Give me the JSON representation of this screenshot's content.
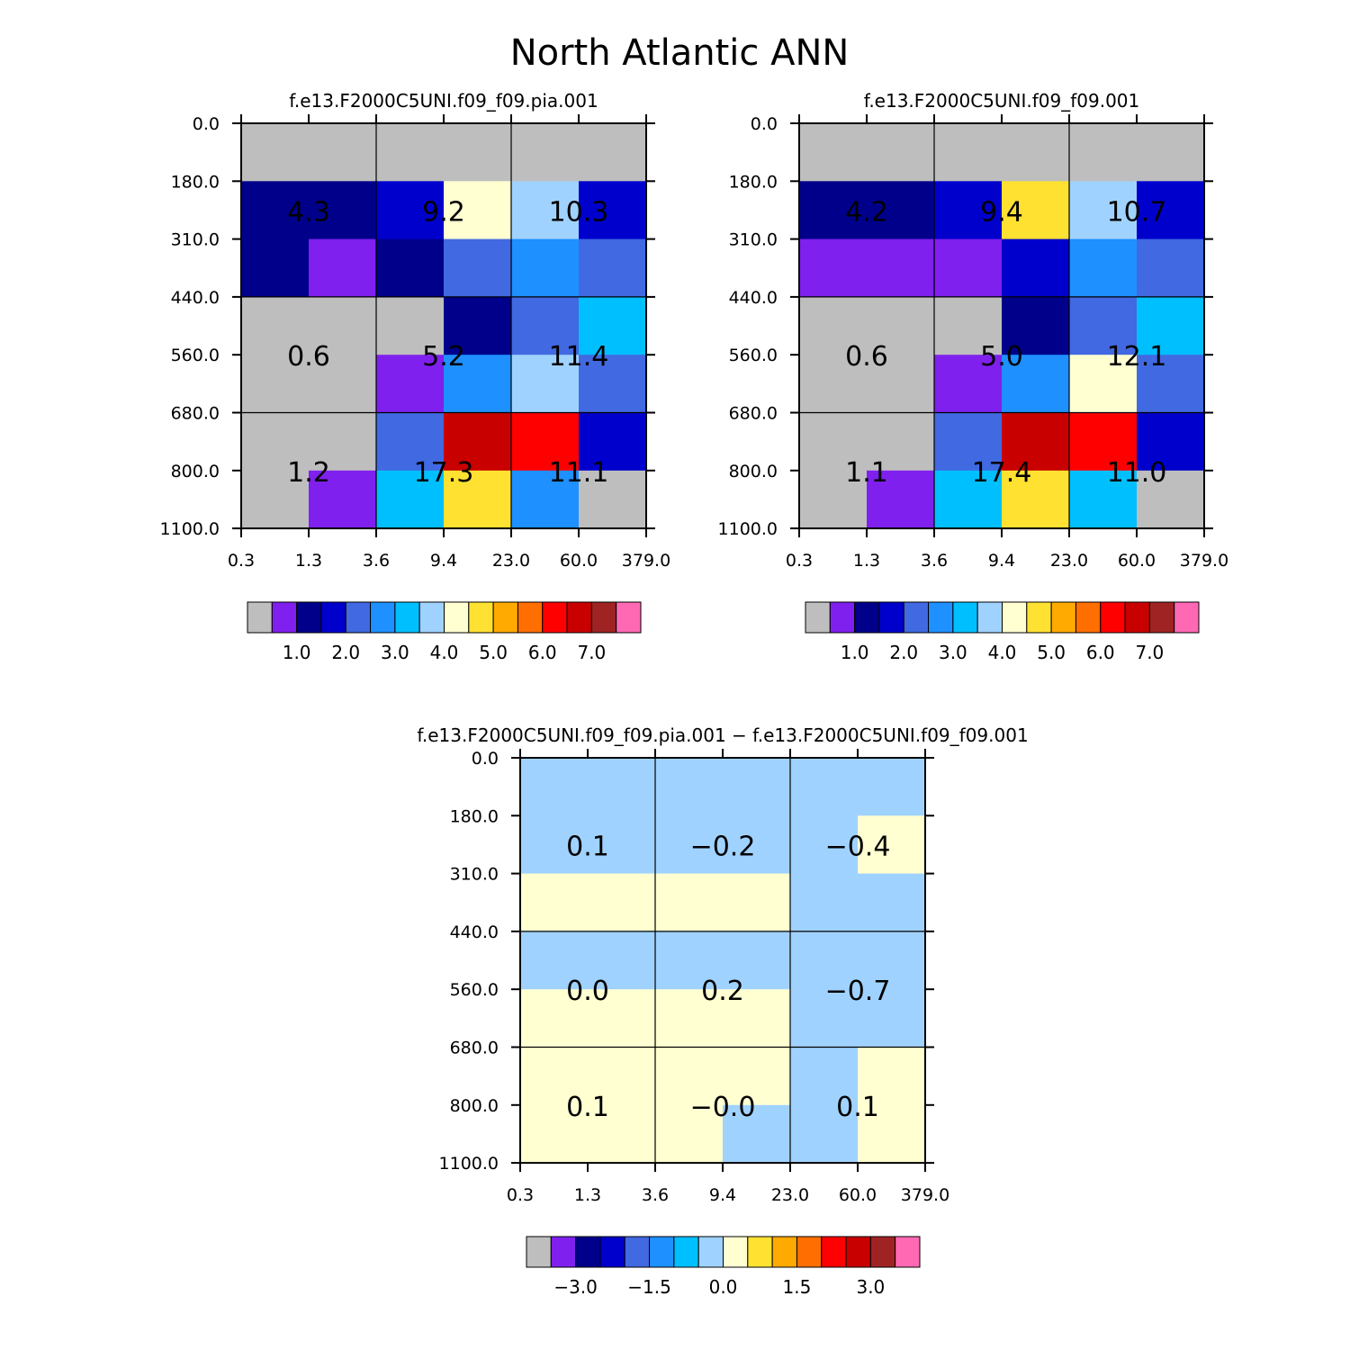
{
  "title": "North Atlantic ANN",
  "chart_data": [
    {
      "type": "heatmap",
      "title": "f.e13.F2000C5UNI.f09_f09.pia.001",
      "x_tick_labels": [
        "0.3",
        "1.3",
        "3.6",
        "9.4",
        "23.0",
        "60.0",
        "379.0"
      ],
      "y_tick_labels": [
        "0.0",
        "180.0",
        "310.0",
        "440.0",
        "560.0",
        "680.0",
        "800.0",
        "1100.0"
      ],
      "cell_colors": [
        [
          "#BEBEBE",
          "#BEBEBE",
          "#BEBEBE",
          "#BEBEBE",
          "#BEBEBE",
          "#BEBEBE"
        ],
        [
          "#00008B",
          "#00008B",
          "#0000CD",
          "#FFFFD2",
          "#A0D2FF",
          "#0000CD"
        ],
        [
          "#00008B",
          "#7F20EE",
          "#00008B",
          "#4169E1",
          "#1E90FF",
          "#4169E1"
        ],
        [
          "#BEBEBE",
          "#BEBEBE",
          "#BEBEBE",
          "#00008B",
          "#4169E1",
          "#00BFFF"
        ],
        [
          "#BEBEBE",
          "#BEBEBE",
          "#7F20EE",
          "#1E90FF",
          "#A0D2FF",
          "#4169E1"
        ],
        [
          "#BEBEBE",
          "#BEBEBE",
          "#4169E1",
          "#C80000",
          "#FF0000",
          "#0000CD"
        ],
        [
          "#BEBEBE",
          "#7F20EE",
          "#00BFFF",
          "#FFE132",
          "#1E90FF",
          "#BEBEBE"
        ]
      ],
      "block_values": [
        [
          "4.3",
          "9.2",
          "10.3"
        ],
        [
          "0.6",
          "5.2",
          "11.4"
        ],
        [
          "1.2",
          "17.3",
          "11.1"
        ]
      ],
      "colorbar": {
        "colors": [
          "#BEBEBE",
          "#7F20EE",
          "#00008B",
          "#0000CD",
          "#4169E1",
          "#1E90FF",
          "#00BFFF",
          "#A0D2FF",
          "#FFFFD2",
          "#FFE132",
          "#FFAA00",
          "#FF6E00",
          "#FF0000",
          "#C80000",
          "#A02323",
          "#FF69B4"
        ],
        "labels": [
          "1.0",
          "2.0",
          "3.0",
          "4.0",
          "5.0",
          "6.0",
          "7.0"
        ]
      }
    },
    {
      "type": "heatmap",
      "title": "f.e13.F2000C5UNI.f09_f09.001",
      "x_tick_labels": [
        "0.3",
        "1.3",
        "3.6",
        "9.4",
        "23.0",
        "60.0",
        "379.0"
      ],
      "y_tick_labels": [
        "0.0",
        "180.0",
        "310.0",
        "440.0",
        "560.0",
        "680.0",
        "800.0",
        "1100.0"
      ],
      "cell_colors": [
        [
          "#BEBEBE",
          "#BEBEBE",
          "#BEBEBE",
          "#BEBEBE",
          "#BEBEBE",
          "#BEBEBE"
        ],
        [
          "#00008B",
          "#00008B",
          "#0000CD",
          "#FFE132",
          "#A0D2FF",
          "#0000CD"
        ],
        [
          "#7F20EE",
          "#7F20EE",
          "#7F20EE",
          "#0000CD",
          "#1E90FF",
          "#4169E1"
        ],
        [
          "#BEBEBE",
          "#BEBEBE",
          "#BEBEBE",
          "#00008B",
          "#4169E1",
          "#00BFFF"
        ],
        [
          "#BEBEBE",
          "#BEBEBE",
          "#7F20EE",
          "#1E90FF",
          "#FFFFD2",
          "#4169E1"
        ],
        [
          "#BEBEBE",
          "#BEBEBE",
          "#4169E1",
          "#C80000",
          "#FF0000",
          "#0000CD"
        ],
        [
          "#BEBEBE",
          "#7F20EE",
          "#00BFFF",
          "#FFE132",
          "#00BFFF",
          "#BEBEBE"
        ]
      ],
      "block_values": [
        [
          "4.2",
          "9.4",
          "10.7"
        ],
        [
          "0.6",
          "5.0",
          "12.1"
        ],
        [
          "1.1",
          "17.4",
          "11.0"
        ]
      ],
      "colorbar": {
        "colors": [
          "#BEBEBE",
          "#7F20EE",
          "#00008B",
          "#0000CD",
          "#4169E1",
          "#1E90FF",
          "#00BFFF",
          "#A0D2FF",
          "#FFFFD2",
          "#FFE132",
          "#FFAA00",
          "#FF6E00",
          "#FF0000",
          "#C80000",
          "#A02323",
          "#FF69B4"
        ],
        "labels": [
          "1.0",
          "2.0",
          "3.0",
          "4.0",
          "5.0",
          "6.0",
          "7.0"
        ]
      }
    },
    {
      "type": "heatmap",
      "title": "f.e13.F2000C5UNI.f09_f09.pia.001 − f.e13.F2000C5UNI.f09_f09.001",
      "x_tick_labels": [
        "0.3",
        "1.3",
        "3.6",
        "9.4",
        "23.0",
        "60.0",
        "379.0"
      ],
      "y_tick_labels": [
        "0.0",
        "180.0",
        "310.0",
        "440.0",
        "560.0",
        "680.0",
        "800.0",
        "1100.0"
      ],
      "cell_colors": [
        [
          "#A0D2FF",
          "#A0D2FF",
          "#A0D2FF",
          "#A0D2FF",
          "#A0D2FF",
          "#A0D2FF"
        ],
        [
          "#A0D2FF",
          "#A0D2FF",
          "#A0D2FF",
          "#A0D2FF",
          "#A0D2FF",
          "#FFFFD2"
        ],
        [
          "#FFFFD2",
          "#FFFFD2",
          "#FFFFD2",
          "#FFFFD2",
          "#A0D2FF",
          "#A0D2FF"
        ],
        [
          "#A0D2FF",
          "#A0D2FF",
          "#A0D2FF",
          "#A0D2FF",
          "#A0D2FF",
          "#A0D2FF"
        ],
        [
          "#FFFFD2",
          "#FFFFD2",
          "#FFFFD2",
          "#FFFFD2",
          "#A0D2FF",
          "#A0D2FF"
        ],
        [
          "#FFFFD2",
          "#FFFFD2",
          "#FFFFD2",
          "#FFFFD2",
          "#A0D2FF",
          "#FFFFD2"
        ],
        [
          "#FFFFD2",
          "#FFFFD2",
          "#FFFFD2",
          "#A0D2FF",
          "#A0D2FF",
          "#FFFFD2"
        ]
      ],
      "block_values": [
        [
          "0.1",
          "−0.2",
          "−0.4"
        ],
        [
          "0.0",
          "0.2",
          "−0.7"
        ],
        [
          "0.1",
          "−0.0",
          "0.1"
        ]
      ],
      "colorbar": {
        "colors": [
          "#BEBEBE",
          "#7F20EE",
          "#00008B",
          "#0000CD",
          "#4169E1",
          "#1E90FF",
          "#00BFFF",
          "#A0D2FF",
          "#FFFFD2",
          "#FFE132",
          "#FFAA00",
          "#FF6E00",
          "#FF0000",
          "#C80000",
          "#A02323",
          "#FF69B4"
        ],
        "labels": [
          "−3.0",
          "−1.5",
          "0.0",
          "1.5",
          "3.0"
        ]
      }
    }
  ]
}
